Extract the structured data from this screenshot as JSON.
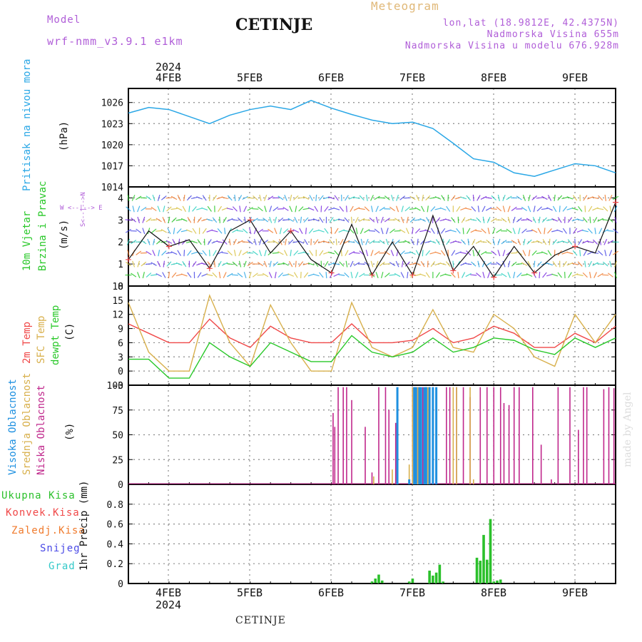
{
  "header": {
    "model_label": "Model",
    "model_name": "wrf-nmm_v3.9.1 e1km",
    "station": "CETINJE",
    "title": "Meteogram",
    "coords": "lon,lat (18.9812E, 42.4375N)",
    "elevation": "Nadmorska Visina 655m",
    "model_elevation": "Nadmorska Visina u modelu 676.928m"
  },
  "footer": {
    "station": "CETINJE",
    "credit": "made by Angel"
  },
  "time_axis": {
    "year": "2024",
    "days": [
      "4FEB",
      "5FEB",
      "6FEB",
      "7FEB",
      "8FEB",
      "9FEB"
    ]
  },
  "panels": {
    "pressure": {
      "ylabel": "Pritisak na nivou mora",
      "unit": "(hPa)"
    },
    "wind": {
      "ylabel_1": "10m Vjetar",
      "ylabel_2": "Brzina i Pravac",
      "unit": "(m/s)",
      "compass": "W <--|--> E",
      "compass_ns": "S<--|-->N"
    },
    "temp": {
      "label_2m": "2m Temp",
      "label_sfc": "SFC Temp",
      "label_dew": "dewpt Temp",
      "unit": "(C)"
    },
    "cloud": {
      "label_high": "Visoka Oblacnost",
      "label_mid": "Srednja Oblacnost",
      "label_low": "Niska Oblacnost",
      "unit": "(%)"
    },
    "precip": {
      "legend": [
        "Ukupna Kisa",
        "Konvek.Kisa",
        "Zaledj.Kisa",
        "Snijeg",
        "Grad"
      ],
      "ylabel": "1hr Precip (mm)"
    }
  },
  "colors": {
    "pressure": "#2aa7e6",
    "temp2m": "#f04848",
    "sfc": "#d8b04c",
    "dew": "#29c829",
    "precip": "#2bc02b",
    "conv": "#f04848",
    "frz": "#f07a2c",
    "snow": "#4a4ae6",
    "hail": "#33c9c9",
    "high_cloud": "#1e90e0",
    "mid_cloud": "#d8b04c",
    "low_cloud": "#c0288c"
  },
  "chart_data": [
    {
      "type": "line",
      "name": "pressure",
      "ylabel": "Pritisak na nivou mora (hPa)",
      "ylim": [
        1014,
        1028
      ],
      "yticks": [
        1014,
        1017,
        1020,
        1023,
        1026
      ],
      "x_hours": [
        0,
        6,
        12,
        18,
        24,
        30,
        36,
        42,
        48,
        54,
        60,
        66,
        72,
        78,
        84,
        90,
        96,
        102,
        108,
        114,
        120,
        126,
        132,
        138,
        144
      ],
      "y": [
        1024.5,
        1025.3,
        1025.0,
        1024.0,
        1023.0,
        1024.2,
        1025.0,
        1025.5,
        1025.0,
        1026.3,
        1025.2,
        1024.3,
        1023.5,
        1023.0,
        1023.2,
        1022.3,
        1020.2,
        1018.0,
        1017.5,
        1016.0,
        1015.5,
        1016.4,
        1017.3,
        1017.0,
        1016.0
      ]
    },
    {
      "type": "line",
      "name": "wind_speed",
      "ylabel": "10m Vjetar Brzina i Pravac (m/s)",
      "ylim": [
        0,
        4.5
      ],
      "yticks": [
        0,
        1,
        2,
        3,
        4
      ],
      "x_hours": [
        0,
        6,
        12,
        18,
        24,
        30,
        36,
        42,
        48,
        54,
        60,
        66,
        72,
        78,
        84,
        90,
        96,
        102,
        108,
        114,
        120,
        126,
        132,
        138,
        144
      ],
      "y": [
        1.2,
        2.5,
        1.8,
        2.1,
        0.8,
        2.5,
        3.0,
        1.5,
        2.5,
        1.2,
        0.6,
        2.8,
        0.5,
        2.0,
        0.5,
        3.2,
        0.7,
        1.8,
        0.4,
        1.8,
        0.6,
        1.4,
        1.8,
        1.5,
        3.8
      ]
    },
    {
      "type": "line",
      "name": "temperature",
      "ylabel": "Temp (C)",
      "ylim": [
        -3,
        18
      ],
      "yticks": [
        -3,
        0,
        3,
        6,
        9,
        12,
        15,
        18
      ],
      "x_hours": [
        0,
        6,
        12,
        18,
        24,
        30,
        36,
        42,
        48,
        54,
        60,
        66,
        72,
        78,
        84,
        90,
        96,
        102,
        108,
        114,
        120,
        126,
        132,
        138,
        144
      ],
      "series": [
        {
          "name": "2m Temp",
          "values": [
            10,
            8,
            6,
            6,
            11,
            7,
            5,
            9.5,
            7,
            6,
            6,
            10,
            6,
            6,
            6.5,
            9,
            6,
            7,
            9.5,
            8,
            5,
            5,
            8,
            6,
            9.5
          ]
        },
        {
          "name": "SFC Temp",
          "values": [
            14.5,
            4,
            0,
            0,
            16,
            6,
            1,
            14,
            6,
            0,
            0,
            14.5,
            5,
            3,
            5,
            13,
            5,
            4,
            12,
            9,
            3,
            1,
            12,
            6,
            12
          ]
        },
        {
          "name": "dewpt Temp",
          "values": [
            2.5,
            2.5,
            -1.5,
            -1.5,
            6,
            3,
            1,
            6,
            4,
            2,
            2,
            7.5,
            4,
            3,
            4,
            7,
            4,
            5,
            7,
            6.5,
            4.5,
            3.5,
            7,
            5,
            7
          ]
        }
      ]
    },
    {
      "type": "bar",
      "name": "cloud_cover",
      "ylabel": "Oblacnost (%)",
      "ylim": [
        0,
        100
      ],
      "yticks": [
        0,
        25,
        50,
        75,
        100
      ],
      "series": [
        {
          "name": "Niska Oblacnost",
          "x_hours": [
            60.5,
            61,
            62,
            63.5,
            64.5,
            66,
            70,
            72,
            74,
            76,
            77,
            79,
            84,
            84.5,
            85,
            85.5,
            86,
            87,
            88,
            89,
            90,
            91,
            94,
            95,
            97,
            99,
            101,
            104,
            106,
            108,
            110,
            111,
            112.5,
            114,
            115.5,
            119.5,
            122,
            125,
            127,
            130.5,
            133,
            134.5,
            135.5,
            140.5,
            142,
            143.5
          ],
          "values": [
            72,
            58,
            98,
            98,
            98,
            85,
            58,
            12,
            98,
            98,
            75,
            62,
            98,
            98,
            98,
            98,
            98,
            98,
            98,
            98,
            98,
            78,
            98,
            98,
            98,
            98,
            88,
            98,
            98,
            98,
            98,
            82,
            80,
            98,
            98,
            98,
            40,
            5,
            98,
            98,
            55,
            98,
            98,
            96,
            98,
            97
          ]
        },
        {
          "name": "Srednja Oblacnost",
          "x_hours": [
            72.5,
            78,
            83,
            84,
            85.5,
            88.5,
            96,
            97,
            101,
            102
          ],
          "values": [
            8,
            15,
            20,
            98,
            98,
            98,
            98,
            98,
            98,
            5
          ]
        },
        {
          "name": "Visoka Oblacnost",
          "x_hours": [
            79.5,
            83,
            84.5,
            85,
            86,
            86.5,
            87.5,
            88,
            89,
            90,
            91
          ],
          "values": [
            98,
            5,
            98,
            98,
            98,
            98,
            98,
            98,
            98,
            98,
            98
          ]
        }
      ]
    },
    {
      "type": "bar",
      "name": "precipitation",
      "ylabel": "1hr Precip (mm)",
      "ylim": [
        0,
        1
      ],
      "yticks": [
        0,
        0.2,
        0.4,
        0.6,
        0.8
      ],
      "x_hours": [
        72,
        73,
        74,
        75,
        83,
        84,
        89,
        90,
        91,
        92,
        93,
        103,
        104,
        105,
        106,
        107,
        108,
        109,
        110
      ],
      "values": [
        0.02,
        0.05,
        0.09,
        0.03,
        0.02,
        0.05,
        0.13,
        0.08,
        0.11,
        0.19,
        0.02,
        0.26,
        0.23,
        0.49,
        0.24,
        0.65,
        0.02,
        0.03,
        0.04
      ]
    }
  ]
}
